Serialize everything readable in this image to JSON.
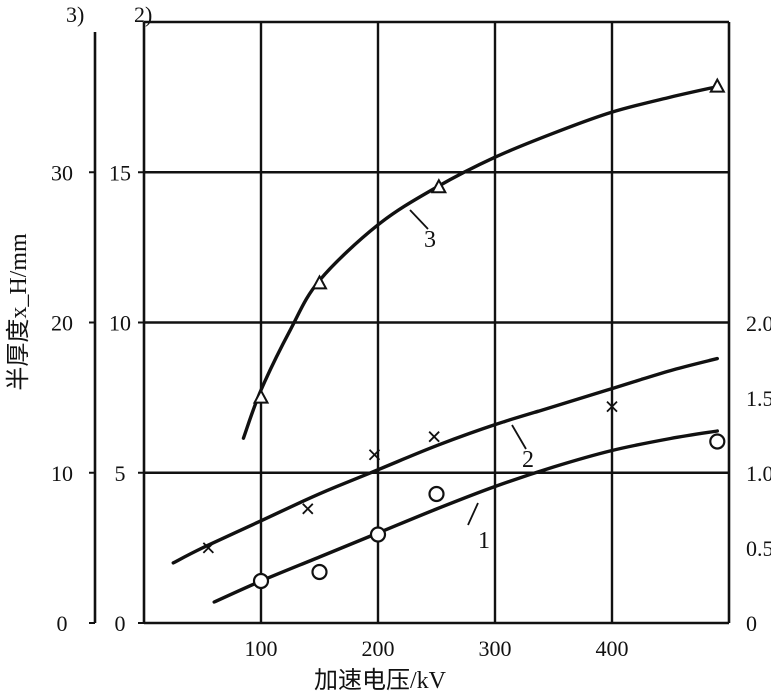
{
  "chart_data": {
    "type": "line",
    "xlabel": "加速电压/kV",
    "ylabel": "半厚度x_H/mm",
    "xlim": [
      0,
      500
    ],
    "ylim": [
      0,
      20
    ],
    "grid": true,
    "x_ticks": [
      "100",
      "200",
      "300",
      "400"
    ],
    "y_ticks_left_3": [
      "0",
      "10",
      "20",
      "30"
    ],
    "y_ticks_left_2": [
      "0",
      "5",
      "10",
      "15"
    ],
    "y_ticks_right_1": [
      "0",
      "0.5",
      "1.0",
      "1.5",
      "2.0"
    ],
    "axis_corner_labels": [
      "3)",
      "2)"
    ],
    "series": [
      {
        "name": "1",
        "axis": "right",
        "marker": "circle",
        "curve_x": [
          60,
          100,
          150,
          200,
          250,
          300,
          350,
          400,
          450,
          490
        ],
        "curve_y": [
          0.14,
          0.28,
          0.44,
          0.6,
          0.76,
          0.91,
          1.04,
          1.15,
          1.23,
          1.28
        ],
        "points_x": [
          100,
          150,
          200,
          250,
          490
        ],
        "points_y": [
          0.28,
          0.34,
          0.59,
          0.86,
          1.21
        ]
      },
      {
        "name": "2",
        "axis": "left-2",
        "marker": "x",
        "curve_x": [
          25,
          50,
          100,
          150,
          200,
          250,
          300,
          350,
          400,
          450,
          490
        ],
        "curve_y": [
          2.0,
          2.5,
          3.4,
          4.3,
          5.1,
          5.9,
          6.6,
          7.2,
          7.8,
          8.4,
          8.8
        ],
        "points_x": [
          55,
          140,
          197,
          248,
          400
        ],
        "points_y": [
          2.5,
          3.8,
          5.6,
          6.2,
          7.2
        ]
      },
      {
        "name": "3",
        "axis": "left-3",
        "marker": "triangle",
        "curve_x": [
          85,
          100,
          125,
          150,
          200,
          250,
          300,
          350,
          400,
          450,
          490
        ],
        "curve_y": [
          12.3,
          15.5,
          19.5,
          22.8,
          26.5,
          29.0,
          31.0,
          32.6,
          34.0,
          35.0,
          35.7
        ],
        "points_x": [
          100,
          150,
          252,
          490
        ],
        "points_y": [
          15.0,
          22.6,
          29.0,
          35.7
        ]
      }
    ]
  }
}
